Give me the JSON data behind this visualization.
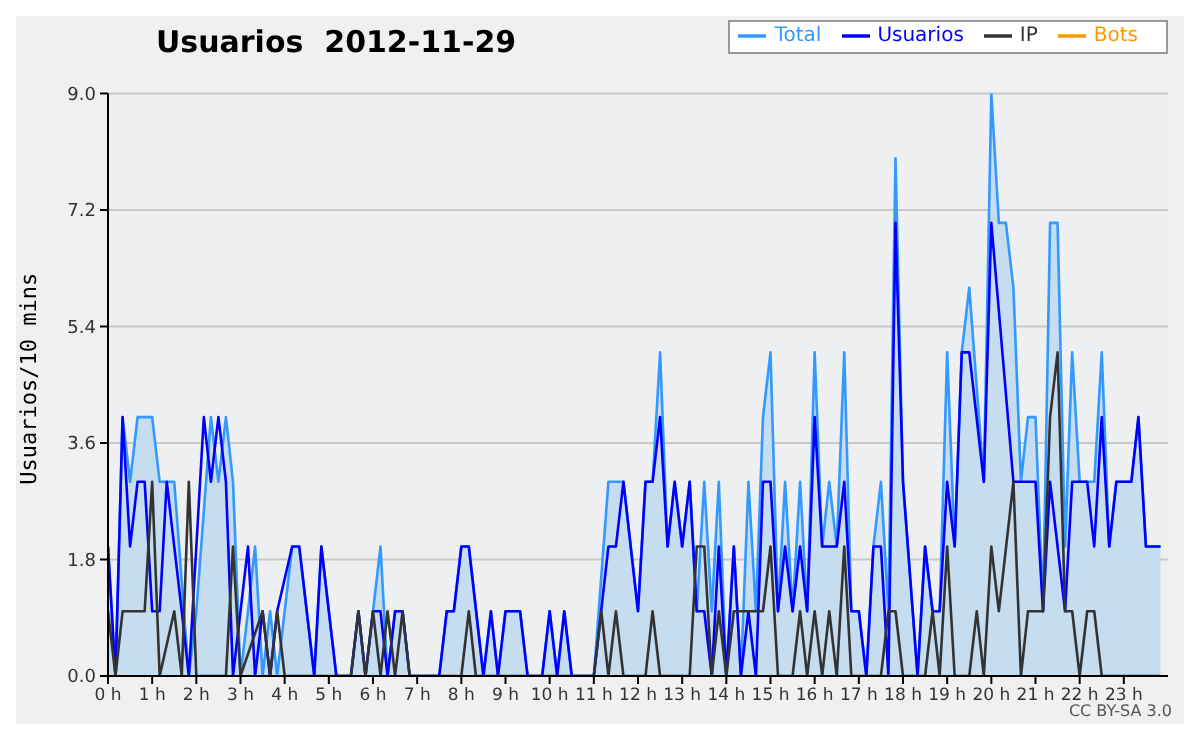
{
  "chart_data": {
    "type": "line",
    "title": "Usuarios  2012-11-29",
    "ylabel": "Usuarios/10 mins",
    "annotations": [
      "CC BY-SA 3.0"
    ],
    "xlim": [
      0,
      24
    ],
    "xticks": [
      {
        "value": 0,
        "label": "0 h"
      },
      {
        "value": 1,
        "label": "1 h"
      },
      {
        "value": 2,
        "label": "2 h"
      },
      {
        "value": 3,
        "label": "3 h"
      },
      {
        "value": 4,
        "label": "4 h"
      },
      {
        "value": 5,
        "label": "5 h"
      },
      {
        "value": 6,
        "label": "6 h"
      },
      {
        "value": 7,
        "label": "7 h"
      },
      {
        "value": 8,
        "label": "8 h"
      },
      {
        "value": 9,
        "label": "9 h"
      },
      {
        "value": 10,
        "label": "10 h"
      },
      {
        "value": 11,
        "label": "11 h"
      },
      {
        "value": 12,
        "label": "12 h"
      },
      {
        "value": 13,
        "label": "13 h"
      },
      {
        "value": 14,
        "label": "14 h"
      },
      {
        "value": 15,
        "label": "15 h"
      },
      {
        "value": 16,
        "label": "16 h"
      },
      {
        "value": 17,
        "label": "17 h"
      },
      {
        "value": 18,
        "label": "18 h"
      },
      {
        "value": 19,
        "label": "19 h"
      },
      {
        "value": 20,
        "label": "20 h"
      },
      {
        "value": 21,
        "label": "21 h"
      },
      {
        "value": 22,
        "label": "22 h"
      },
      {
        "value": 23,
        "label": "23 h"
      }
    ],
    "ylim": [
      0,
      9
    ],
    "yticks": [
      {
        "value": 0,
        "label": "0.0"
      },
      1.8,
      3.6,
      5.4,
      7.2,
      {
        "value": 9,
        "label": "9.0"
      }
    ],
    "grid": "y",
    "legend": "top right",
    "marker": "none",
    "line_style": "solid",
    "series": [
      {
        "name": "Total",
        "type": "area",
        "color": "#3399ff",
        "x": [
          0,
          0.17,
          0.33,
          0.5,
          0.67,
          1,
          1.17,
          1.5,
          1.83,
          2,
          2.33,
          2.5,
          2.67,
          2.83,
          3,
          3.17,
          3.33,
          3.5,
          3.67,
          3.83,
          4.17,
          4.33,
          4.67,
          4.83,
          5.17,
          5.5,
          5.67,
          5.83,
          6,
          6.17,
          6.33,
          6.5,
          6.67,
          6.83,
          7.5,
          7.67,
          7.83,
          8,
          8.17,
          8.5,
          8.67,
          8.83,
          9,
          9.33,
          9.5,
          9.83,
          10,
          10.17,
          10.33,
          10.5,
          11,
          11.33,
          11.5,
          11.67,
          12,
          12.17,
          12.33,
          12.5,
          12.67,
          12.83,
          13,
          13.17,
          13.33,
          13.5,
          13.67,
          13.83,
          14,
          14.17,
          14.33,
          14.5,
          14.67,
          14.83,
          15,
          15.17,
          15.33,
          15.5,
          15.67,
          15.83,
          16,
          16.17,
          16.33,
          16.5,
          16.67,
          16.83,
          17,
          17.17,
          17.33,
          17.5,
          17.67,
          17.83,
          18,
          18.33,
          18.5,
          18.67,
          18.83,
          19,
          19.17,
          19.33,
          19.5,
          19.83,
          20,
          20.17,
          20.33,
          20.5,
          20.67,
          20.83,
          21,
          21.17,
          21.33,
          21.5,
          21.67,
          21.83,
          22,
          22.17,
          22.33,
          22.5,
          22.67,
          22.83,
          23.17,
          23.33,
          23.5,
          23.83
        ],
        "values": [
          2,
          0,
          4,
          3,
          4,
          4,
          3,
          3,
          0,
          1,
          4,
          3,
          4,
          3,
          0,
          1,
          2,
          0,
          1,
          0,
          2,
          2,
          0,
          2,
          0,
          0,
          1,
          0,
          1,
          2,
          0,
          1,
          1,
          0,
          0,
          1,
          1,
          2,
          2,
          0,
          1,
          0,
          1,
          1,
          0,
          0,
          1,
          0,
          1,
          0,
          0,
          3,
          3,
          3,
          1,
          3,
          3,
          5,
          2,
          3,
          2,
          3,
          1,
          3,
          1,
          3,
          0,
          2,
          0,
          3,
          1,
          4,
          5,
          1,
          3,
          1,
          3,
          1,
          5,
          2,
          3,
          2,
          5,
          1,
          1,
          0,
          2,
          3,
          1,
          8,
          3,
          0,
          2,
          1,
          1,
          5,
          2,
          5,
          6,
          3,
          9,
          7,
          7,
          6,
          3,
          4,
          4,
          1,
          7,
          7,
          2,
          5,
          3,
          3,
          3,
          5,
          2,
          3,
          3,
          4,
          2,
          2
        ]
      },
      {
        "name": "Usuarios",
        "color": "#0000ff",
        "x": [
          0,
          0.17,
          0.33,
          0.5,
          0.67,
          0.83,
          1,
          1.17,
          1.33,
          1.5,
          1.67,
          1.83,
          2,
          2.17,
          2.33,
          2.5,
          2.67,
          2.83,
          3,
          3.17,
          3.33,
          3.5,
          3.67,
          3.83,
          4.17,
          4.33,
          4.67,
          4.83,
          5.17,
          5.5,
          5.67,
          5.83,
          6,
          6.17,
          6.33,
          6.5,
          6.67,
          6.83,
          7.5,
          7.67,
          7.83,
          8,
          8.17,
          8.5,
          8.67,
          8.83,
          9,
          9.33,
          9.5,
          9.83,
          10,
          10.17,
          10.33,
          10.5,
          11,
          11.33,
          11.5,
          11.67,
          12,
          12.17,
          12.33,
          12.5,
          12.67,
          12.83,
          13,
          13.17,
          13.33,
          13.5,
          13.67,
          13.83,
          14,
          14.17,
          14.33,
          14.5,
          14.67,
          14.83,
          15,
          15.17,
          15.33,
          15.5,
          15.67,
          15.83,
          16,
          16.17,
          16.5,
          16.67,
          16.83,
          17,
          17.17,
          17.33,
          17.5,
          17.67,
          17.83,
          18,
          18.33,
          18.5,
          18.67,
          18.83,
          19,
          19.17,
          19.33,
          19.5,
          19.83,
          20,
          20.5,
          21,
          21.17,
          21.33,
          21.67,
          21.83,
          22.17,
          22.33,
          22.5,
          22.67,
          22.83,
          23.17,
          23.33,
          23.5,
          23.83
        ],
        "values": [
          2,
          0,
          4,
          2,
          3,
          3,
          1,
          1,
          3,
          2,
          1,
          0,
          2,
          4,
          3,
          4,
          3,
          0,
          1,
          2,
          0,
          1,
          0,
          1,
          2,
          2,
          0,
          2,
          0,
          0,
          1,
          0,
          1,
          1,
          0,
          1,
          1,
          0,
          0,
          1,
          1,
          2,
          2,
          0,
          1,
          0,
          1,
          1,
          0,
          0,
          1,
          0,
          1,
          0,
          0,
          2,
          2,
          3,
          1,
          3,
          3,
          4,
          2,
          3,
          2,
          3,
          1,
          1,
          0,
          2,
          0,
          2,
          0,
          1,
          0,
          3,
          3,
          1,
          2,
          1,
          2,
          1,
          4,
          2,
          2,
          3,
          1,
          1,
          0,
          2,
          2,
          0,
          7,
          3,
          0,
          2,
          1,
          1,
          3,
          2,
          5,
          5,
          3,
          7,
          3,
          3,
          1,
          3,
          1,
          3,
          3,
          2,
          4,
          2,
          3,
          3,
          4,
          2,
          2
        ]
      },
      {
        "name": "IP",
        "color": "#333333",
        "x": [
          0,
          0.17,
          0.33,
          0.83,
          1,
          1.17,
          1.5,
          1.67,
          1.83,
          2,
          2.67,
          2.83,
          3,
          3.5,
          3.67,
          3.83,
          4,
          5.5,
          5.67,
          5.83,
          6,
          6.17,
          6.33,
          6.5,
          6.67,
          6.83,
          8,
          8.17,
          8.33,
          11,
          11.17,
          11.33,
          11.5,
          11.67,
          12.17,
          12.33,
          12.5,
          13.17,
          13.33,
          13.5,
          13.67,
          13.83,
          14,
          14.17,
          14.83,
          15,
          15.17,
          15.5,
          15.67,
          15.83,
          16,
          16.17,
          16.33,
          16.5,
          16.67,
          16.83,
          17.5,
          17.67,
          17.83,
          18,
          18.5,
          18.67,
          18.83,
          19,
          19.17,
          19.5,
          19.67,
          19.83,
          20,
          20.17,
          20.5,
          20.67,
          20.83,
          21.17,
          21.33,
          21.5,
          21.67,
          21.83,
          22,
          22.17,
          22.33,
          22.5,
          23.83
        ],
        "values": [
          1,
          0,
          1,
          1,
          3,
          0,
          1,
          0,
          3,
          0,
          0,
          2,
          0,
          1,
          0,
          1,
          0,
          0,
          1,
          0,
          1,
          0,
          1,
          0,
          1,
          0,
          0,
          1,
          0,
          0,
          1,
          0,
          1,
          0,
          0,
          1,
          0,
          0,
          2,
          2,
          0,
          1,
          0,
          1,
          1,
          2,
          0,
          0,
          1,
          0,
          1,
          0,
          1,
          0,
          2,
          0,
          0,
          1,
          1,
          0,
          0,
          1,
          0,
          2,
          0,
          0,
          1,
          0,
          2,
          1,
          3,
          0,
          1,
          1,
          4,
          5,
          1,
          1,
          0,
          1,
          1,
          0,
          0
        ]
      },
      {
        "name": "Bots",
        "color": "#ff9900"
      }
    ]
  }
}
